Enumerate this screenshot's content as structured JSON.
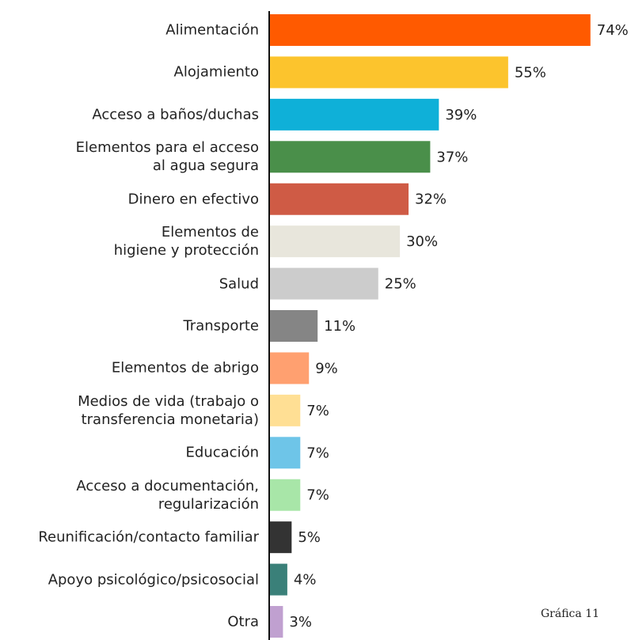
{
  "chart_data": {
    "type": "barh",
    "categories": [
      "Alimentación",
      "Alojamiento",
      "Acceso a baños/duchas",
      "Elementos para el acceso\nal agua segura",
      "Dinero en efectivo",
      "Elementos de\nhigiene y protección",
      "Salud",
      "Transporte",
      "Elementos de abrigo",
      "Medios de vida (trabajo o\ntransferencia monetaria)",
      "Educación",
      "Acceso a documentación,\nregularización",
      "Reunificación/contacto familiar",
      "Apoyo psicológico/psicosocial",
      "Otra"
    ],
    "values": [
      74,
      55,
      39,
      37,
      32,
      30,
      25,
      11,
      9,
      7,
      7,
      7,
      5,
      4,
      3
    ],
    "value_labels": [
      "74%",
      "55%",
      "39%",
      "37%",
      "32%",
      "30%",
      "25%",
      "11%",
      "9%",
      "7%",
      "7%",
      "7%",
      "5%",
      "4%",
      "3%"
    ],
    "colors": [
      "#ff5a00",
      "#fcc42d",
      "#0fb0d8",
      "#4a8f4a",
      "#cf5b45",
      "#e8e6dc",
      "#cccccc",
      "#858585",
      "#ffa070",
      "#ffdf94",
      "#6ec5e8",
      "#a8e6a8",
      "#333333",
      "#3a8079",
      "#c0a0d0"
    ],
    "annotation": "Gráfica 11"
  }
}
